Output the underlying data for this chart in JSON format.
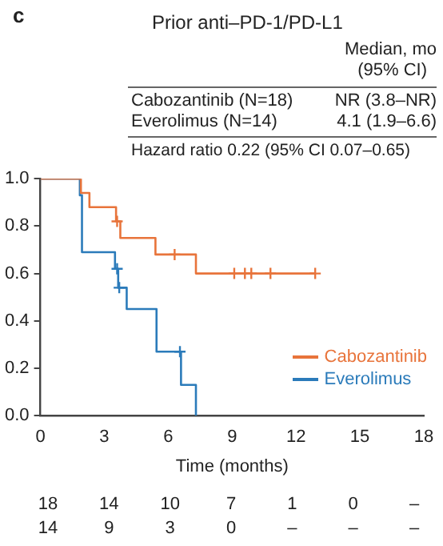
{
  "chart_data": {
    "type": "step",
    "title": "Prior anti–PD-1/PD-L1",
    "xlabel": "Time (months)",
    "annotations": [
      "c",
      "Median, mo",
      "(95% CI)",
      "Cabozantinib (N=18)",
      "NR (3.8–NR)",
      "Everolimus (N=14)",
      "4.1 (1.9–6.6)",
      "Hazard ratio 0.22 (95% CI 0.07–0.65)",
      "18 14 10 7 1 0 –",
      "14 9 3 0 – – –"
    ],
    "series": [
      {
        "name": "Cabozantinib",
        "color": "#e8743b",
        "marker": "none",
        "x": [
          0,
          1.9,
          2.3,
          3.55,
          3.75,
          5.4,
          7.3,
          12.9
        ],
        "values": [
          1,
          0.94,
          0.88,
          0.82,
          0.75,
          0.68,
          0.6,
          0.6
        ]
      },
      {
        "name": "Everolimus",
        "color": "#2b7bba",
        "marker": "none",
        "x": [
          0,
          1.85,
          1.95,
          3.5,
          3.65,
          4.05,
          5.45,
          6.6,
          7.3
        ],
        "values": [
          1,
          0.93,
          0.69,
          0.62,
          0.54,
          0.45,
          0.27,
          0.13,
          0
        ]
      },
      {
        "type": "scatter",
        "color": "#e8743b",
        "marker": "cross",
        "x": [
          3.6,
          6.3,
          9.1,
          9.6,
          9.9,
          10.8,
          12.9
        ],
        "values": [
          0.82,
          0.68,
          0.6,
          0.6,
          0.6,
          0.6,
          0.6
        ]
      },
      {
        "type": "scatter",
        "color": "#2b7bba",
        "marker": "cross",
        "x": [
          3.6,
          3.7,
          6.55
        ],
        "values": [
          0.62,
          0.54,
          0.27
        ]
      }
    ],
    "xlim": [
      0,
      18
    ],
    "xticks": [
      0,
      3,
      6,
      9,
      12,
      15,
      18
    ],
    "ylim": [
      0,
      1
    ],
    "yticks": [
      {
        "value": 0,
        "label": "0.0"
      },
      0.2,
      0.4,
      0.6,
      0.8,
      {
        "value": 1,
        "label": "1.0"
      }
    ],
    "grid": false,
    "legend": "bottom right"
  }
}
